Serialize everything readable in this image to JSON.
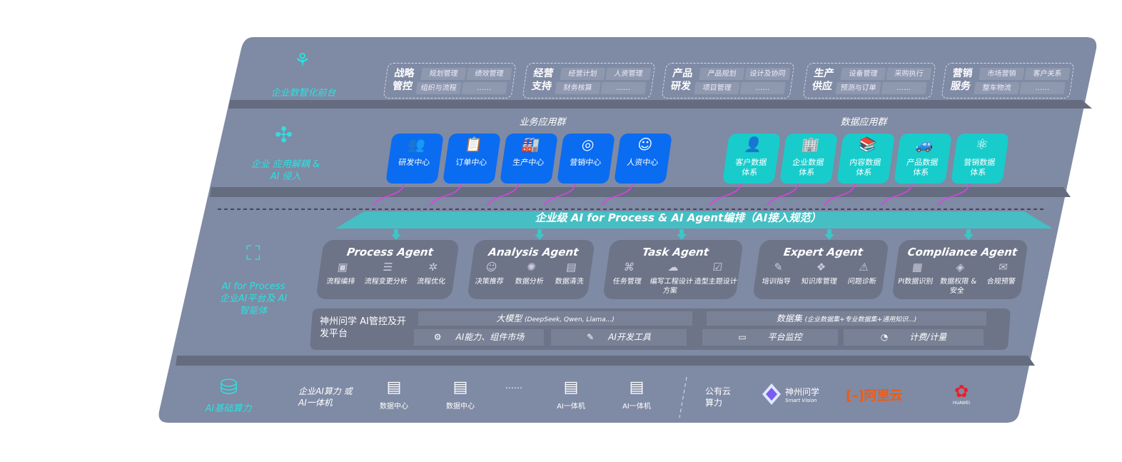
{
  "colors": {
    "panel": "#7f8aa4",
    "accent_cyan": "#2de0e0",
    "business_blue": "#0a6cf0",
    "data_teal": "#18cccc",
    "arrow_magenta": "#e040e8",
    "agent_box": "#6d7488"
  },
  "front": {
    "label": "企业数智化前台",
    "icon": "brain-icon",
    "groups": [
      {
        "title": "战略管控",
        "items": [
          "规划管理",
          "绩效管理",
          "组织与流程",
          "……"
        ]
      },
      {
        "title": "经营支持",
        "items": [
          "经营计划",
          "人资管理",
          "财务核算",
          "……"
        ]
      },
      {
        "title": "产品研发",
        "items": [
          "产品规划",
          "设计及协同",
          "项目管理",
          "……"
        ]
      },
      {
        "title": "生产供应",
        "items": [
          "设备管理",
          "采购执行",
          "预测与订单",
          "……"
        ]
      },
      {
        "title": "营销服务",
        "items": [
          "市场营销",
          "客户关系",
          "整车物流",
          "……"
        ]
      }
    ]
  },
  "apps": {
    "label": "企业 应用解耦 & AI 侵入",
    "icon": "molecule-icon",
    "business_title": "业务应用群",
    "business": [
      {
        "label": "研发中心",
        "icon": "users-icon"
      },
      {
        "label": "订单中心",
        "icon": "clipboard-icon"
      },
      {
        "label": "生产中心",
        "icon": "factory-icon"
      },
      {
        "label": "营销中心",
        "icon": "target-icon"
      },
      {
        "label": "人资中心",
        "icon": "person-icon"
      }
    ],
    "data_title": "数据应用群",
    "data": [
      {
        "label": "客户数据体系",
        "icon": "user-icon"
      },
      {
        "label": "企业数据体系",
        "icon": "building-icon"
      },
      {
        "label": "内容数据体系",
        "icon": "books-icon"
      },
      {
        "label": "产品数据体系",
        "icon": "car-icon"
      },
      {
        "label": "营销数据体系",
        "icon": "atom-icon"
      }
    ]
  },
  "orchestration": "企业级 AI for Process & AI Agent编排（AI接入规范）",
  "ai_platform": {
    "label": "AI for Process 企业AI平台及 AI智能体",
    "icon": "face-scan-icon",
    "agents": [
      {
        "title": "Process Agent",
        "items": [
          "流程编排",
          "流程变更分析",
          "流程优化"
        ]
      },
      {
        "title": "Analysis Agent",
        "items": [
          "决策推荐",
          "数据分析",
          "数据清洗"
        ]
      },
      {
        "title": "Task Agent",
        "items": [
          "任务管理",
          "编写工程设计方案",
          "造型主题设计"
        ]
      },
      {
        "title": "Expert Agent",
        "items": [
          "培训指导",
          "知识库管理",
          "问题诊断"
        ]
      },
      {
        "title": "Compliance Agent",
        "items": [
          "PI数据识别",
          "数据权限 & 安全",
          "合规预警"
        ]
      }
    ],
    "platform_title": "神州问学 AI管控及开发平台",
    "llm": "大模型",
    "llm_note": "(DeepSeek, Qwen, Llama...)",
    "dataset": "数据集",
    "dataset_note": "(企业数据集+专业数据集+通用知识...)",
    "tools": [
      "AI能力、组件市场",
      "AI开发工具",
      "平台监控",
      "计费/计量"
    ]
  },
  "compute": {
    "label": "AI基础算力",
    "icon": "database-icon",
    "onprem": "企业AI算力 或AI一体机",
    "servers": [
      "数据中心",
      "数据中心",
      "AI一体机",
      "AI一体机"
    ],
    "ellipsis": "……",
    "cloud": "公有云 算力",
    "vendors": {
      "smart_vision": "神州问学",
      "smart_vision_en": "Smart Vision",
      "aliyun": "阿里云",
      "huawei": "HUAWEI"
    }
  }
}
